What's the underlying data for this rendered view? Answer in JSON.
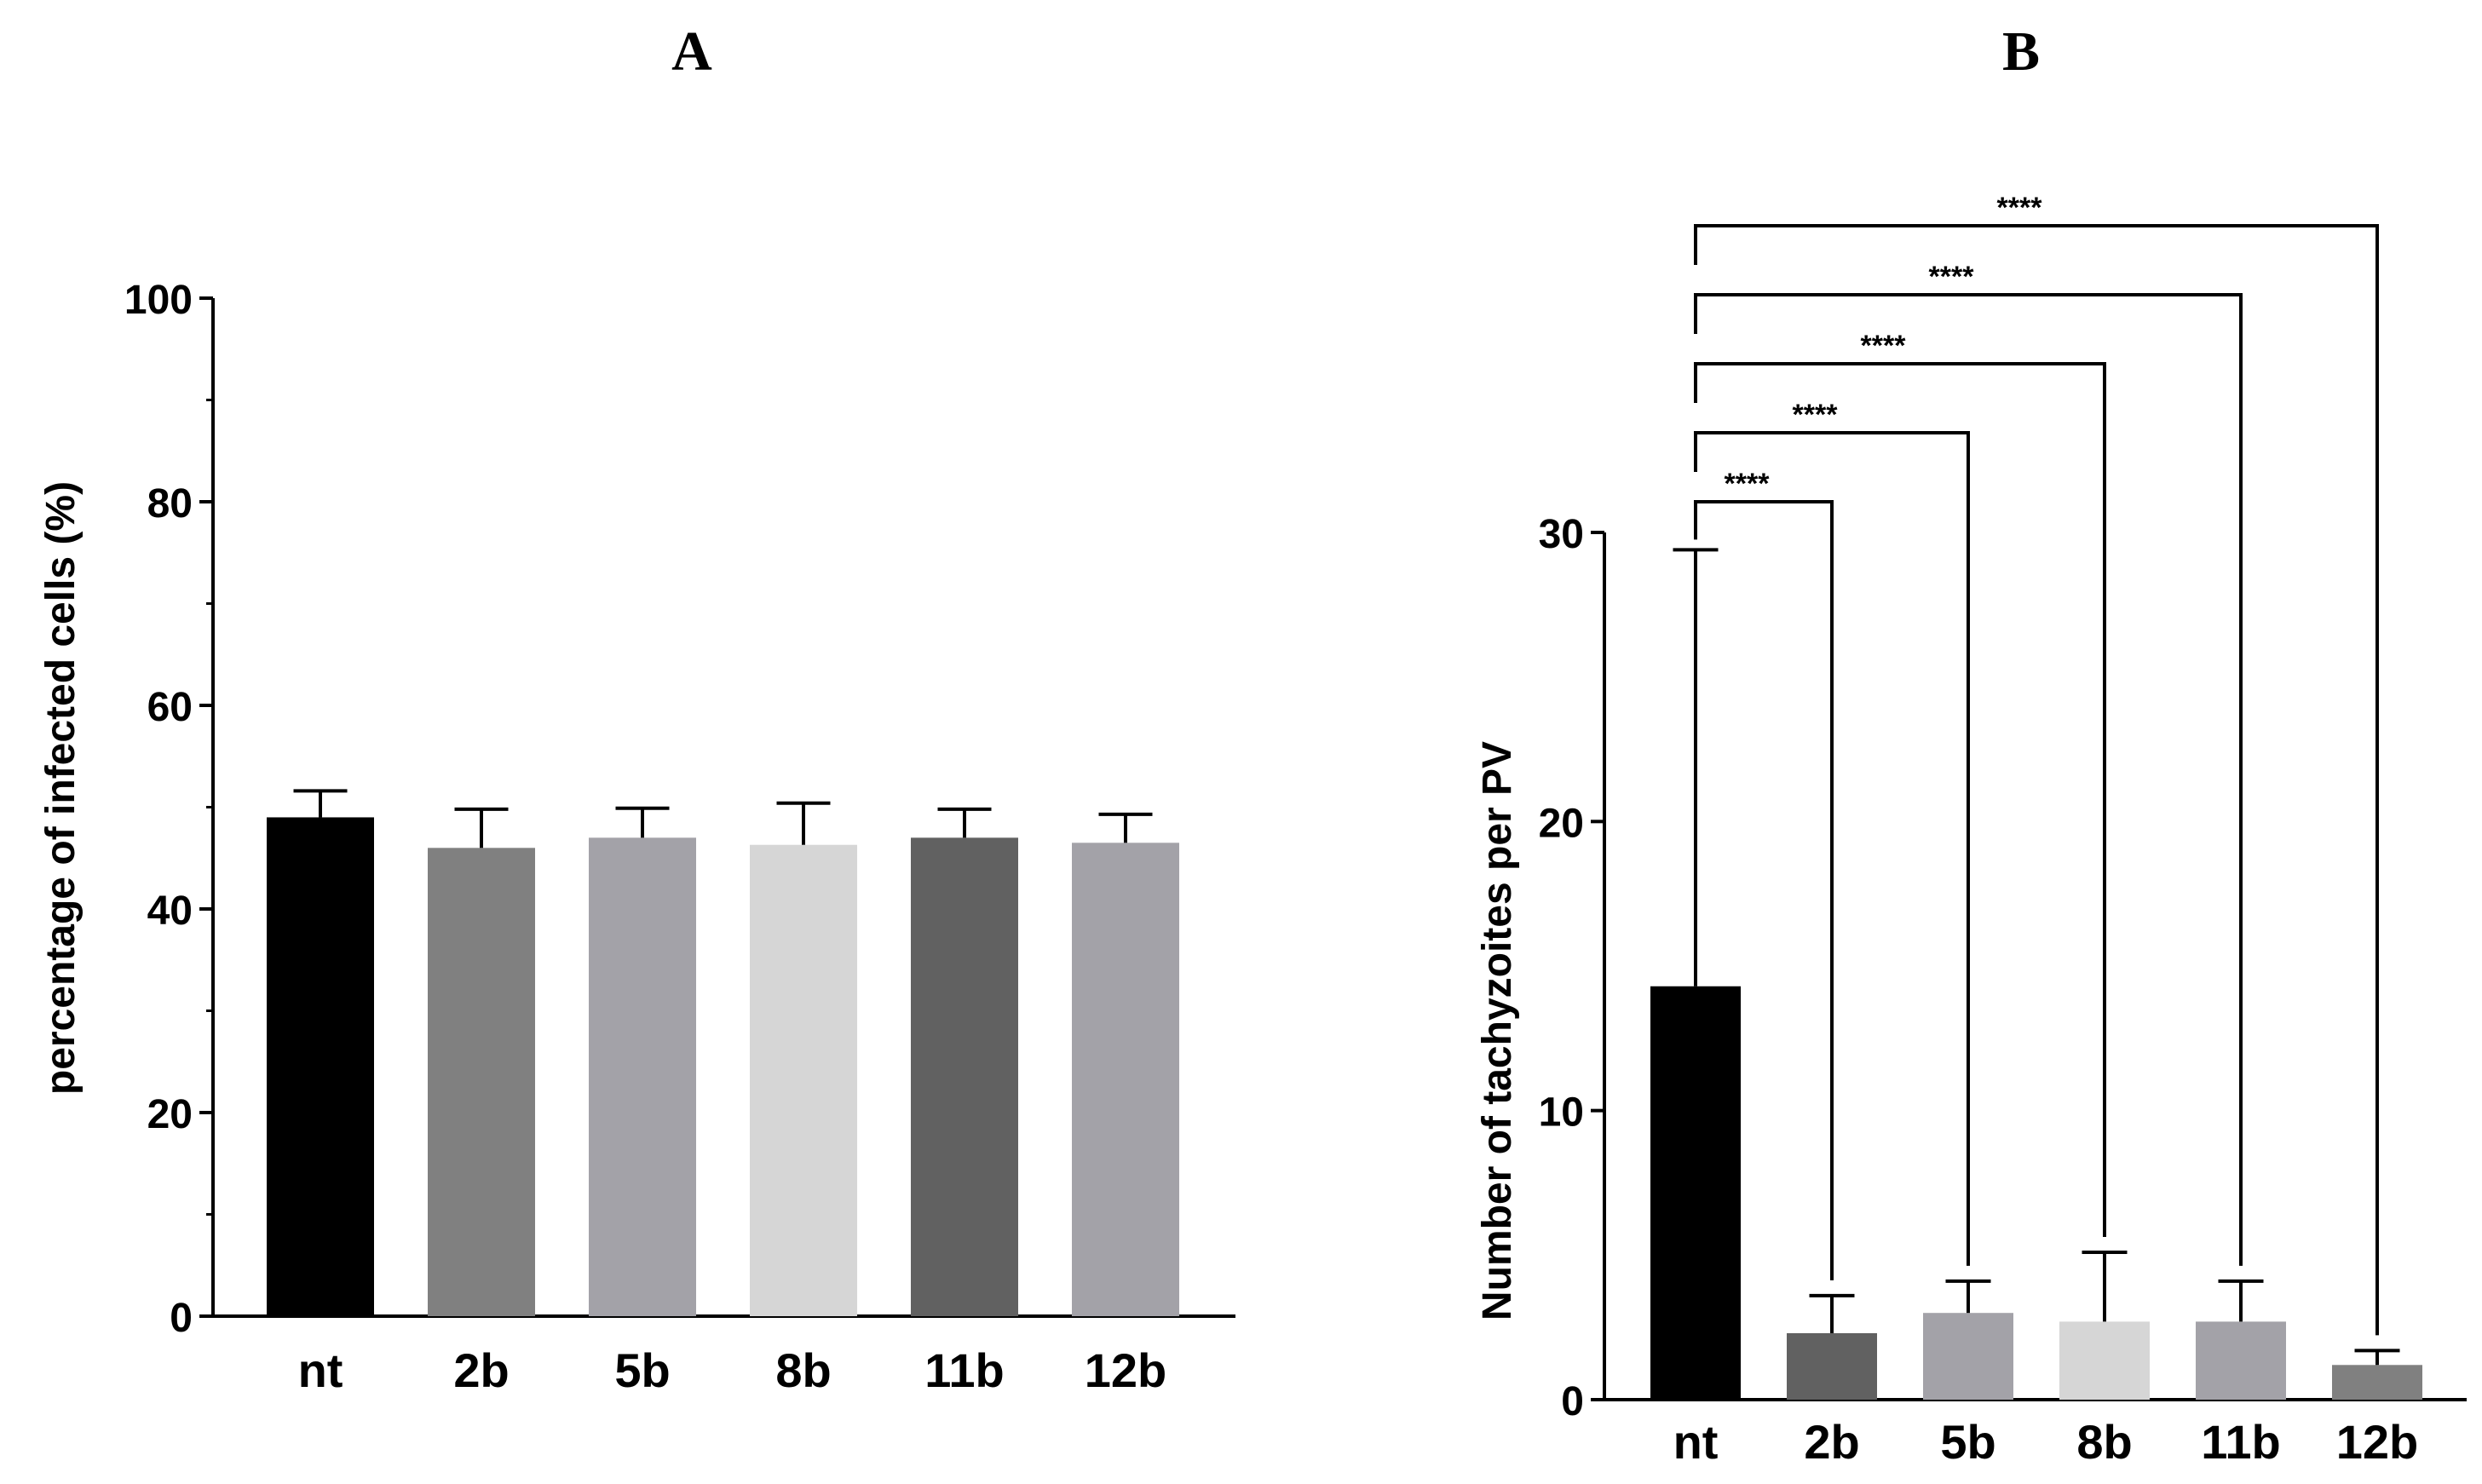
{
  "chart_data": [
    {
      "panel": "A",
      "type": "bar",
      "title": "",
      "xlabel": "",
      "ylabel": "percentage of infected cells (%)",
      "ylim": [
        0,
        100
      ],
      "yticks": [
        0,
        20,
        40,
        60,
        80,
        100
      ],
      "minor_yticks": [
        10,
        30,
        50,
        70,
        90
      ],
      "grid": false,
      "legend": "none",
      "categories": [
        "nt",
        "2b",
        "5b",
        "8b",
        "11b",
        "12b"
      ],
      "values": [
        49.0,
        46.0,
        47.0,
        46.3,
        47.0,
        46.5
      ],
      "error_upper": [
        51.6,
        49.8,
        49.9,
        50.4,
        49.8,
        49.3
      ],
      "colors": [
        "#000000",
        "#808080",
        "#a3a2a8",
        "#d6d6d6",
        "#616161",
        "#a3a2a8"
      ],
      "significance": []
    },
    {
      "panel": "B",
      "type": "bar",
      "title": "",
      "xlabel": "",
      "ylabel": "Number of tachyzoites per PV",
      "ylim": [
        0,
        30
      ],
      "yticks": [
        0,
        10,
        20,
        30
      ],
      "grid": false,
      "legend": "none",
      "categories": [
        "nt",
        "2b",
        "5b",
        "8b",
        "11b",
        "12b"
      ],
      "values": [
        14.3,
        2.3,
        3.0,
        2.7,
        2.7,
        1.2
      ],
      "error_upper": [
        29.4,
        3.6,
        4.1,
        5.1,
        4.1,
        1.7
      ],
      "colors": [
        "#000000",
        "#616161",
        "#a3a2a8",
        "#d6d6d6",
        "#a3a2a8",
        "#808080"
      ],
      "significance": [
        {
          "from": "nt",
          "to": "2b",
          "label": "****"
        },
        {
          "from": "nt",
          "to": "5b",
          "label": "****"
        },
        {
          "from": "nt",
          "to": "8b",
          "label": "****"
        },
        {
          "from": "nt",
          "to": "11b",
          "label": "****"
        },
        {
          "from": "nt",
          "to": "12b",
          "label": "****"
        }
      ]
    }
  ]
}
